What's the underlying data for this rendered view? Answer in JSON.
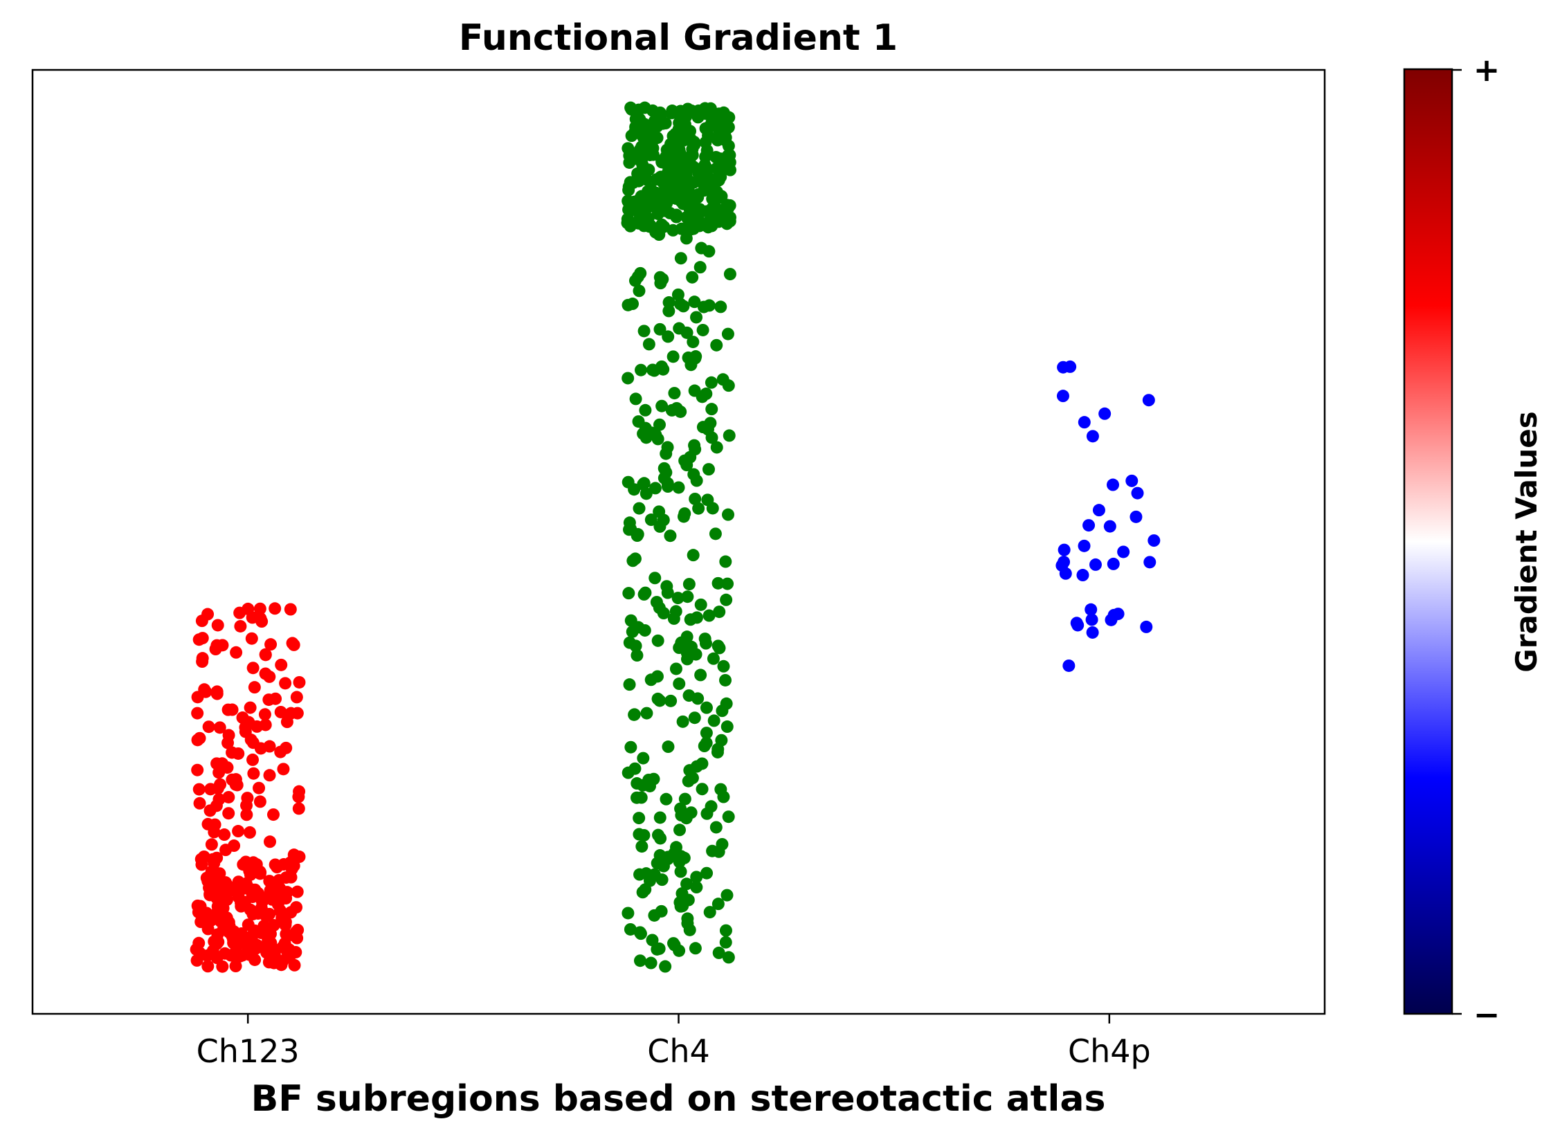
{
  "chart_data": {
    "type": "scatter",
    "title": "Functional Gradient 1",
    "xlabel": "BF subregions based on stereotactic atlas",
    "ylabel": "",
    "categories": [
      "Ch123",
      "Ch4",
      "Ch4p"
    ],
    "y_ticks_shown": false,
    "ylim": [
      0,
      1
    ],
    "grid": false,
    "legend": "none",
    "series": [
      {
        "category": "Ch123",
        "color": "#ff0000",
        "count": 300,
        "y_min": 0.05,
        "y_max": 0.43,
        "dense_min": 0.05,
        "dense_max": 0.17
      },
      {
        "category": "Ch4",
        "color": "#008000",
        "count": 600,
        "y_min": 0.05,
        "y_max": 0.96,
        "dense_min": 0.83,
        "dense_max": 0.96
      },
      {
        "category": "Ch4p",
        "color": "#0000ff",
        "count": 35,
        "y_min": 0.36,
        "y_max": 0.69,
        "dense_min": 0.4,
        "dense_max": 0.52
      }
    ],
    "colorbar": {
      "label": "Gradient Values",
      "top_tick": "+",
      "bottom_tick": "−",
      "colormap": "seismic",
      "colors": [
        "#00004c",
        "#0000ff",
        "#ffffff",
        "#ff0000",
        "#800000"
      ]
    }
  }
}
